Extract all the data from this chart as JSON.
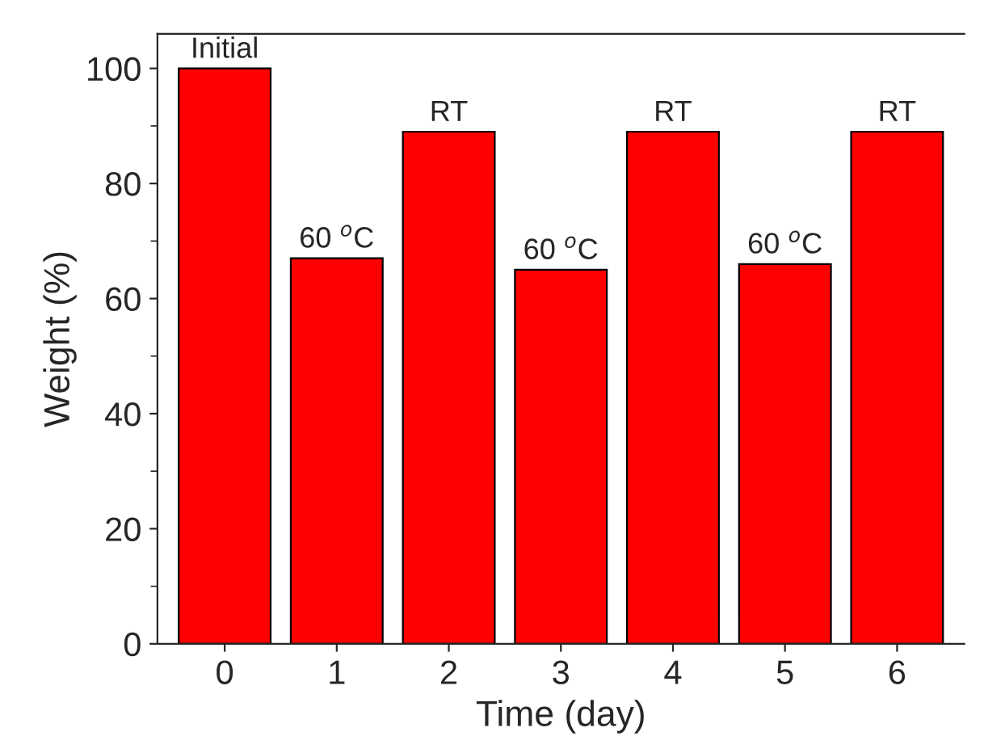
{
  "chart_data": {
    "type": "bar",
    "xlabel": "Time (day)",
    "ylabel": "Weight (%)",
    "categories": [
      "0",
      "1",
      "2",
      "3",
      "4",
      "5",
      "6"
    ],
    "values": [
      100,
      67,
      89,
      65,
      89,
      66,
      89
    ],
    "color": "#ff0000",
    "ylim": [
      0,
      106
    ],
    "yticks": [
      0,
      20,
      40,
      60,
      80,
      100
    ],
    "annotations": [
      {
        "text": "Initial",
        "x": "0",
        "y": 100
      },
      {
        "text": "60 $^{o}$C",
        "x": "1",
        "y": 67
      },
      {
        "text": "RT",
        "x": "2",
        "y": 89
      },
      {
        "text": "60 $^{o}$C",
        "x": "3",
        "y": 65
      },
      {
        "text": "RT",
        "x": "4",
        "y": 89
      },
      {
        "text": "60 $^{o}$C",
        "x": "5",
        "y": 66
      },
      {
        "text": "RT",
        "x": "6",
        "y": 89
      }
    ]
  }
}
